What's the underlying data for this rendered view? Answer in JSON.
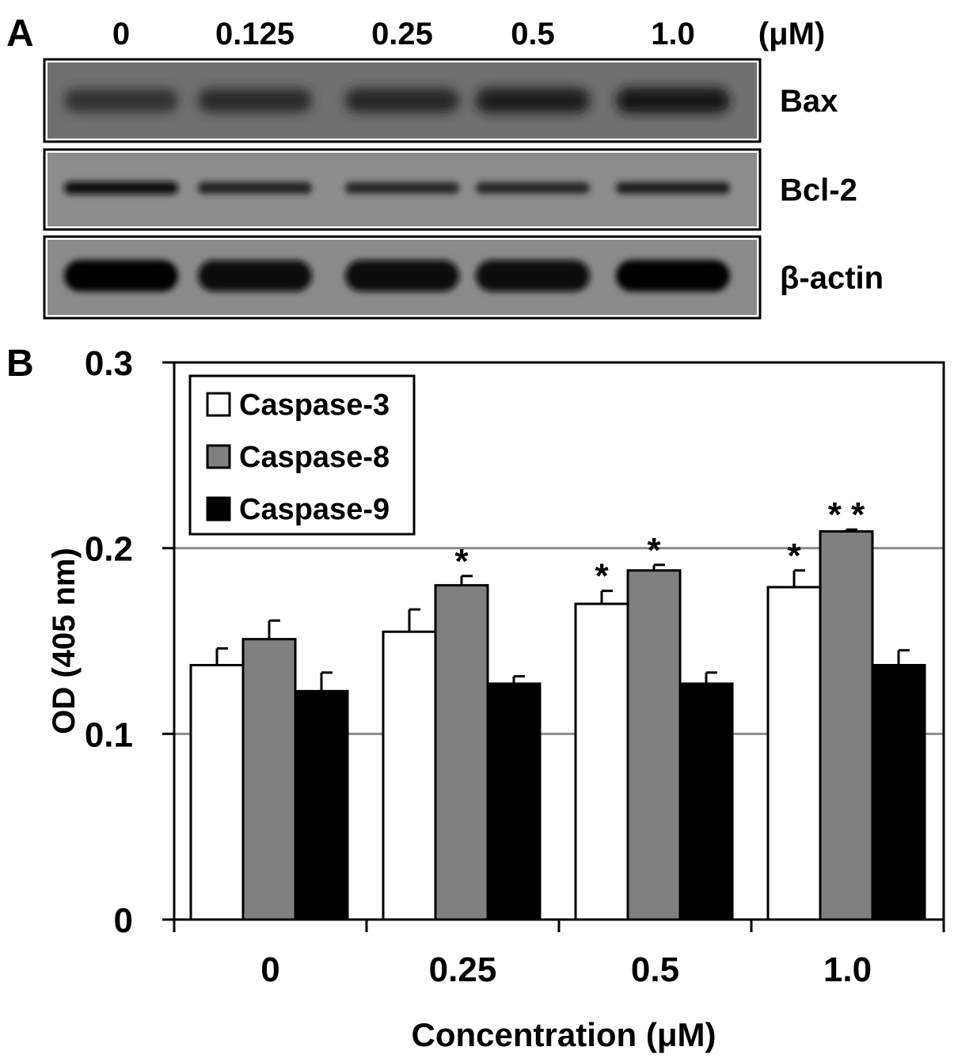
{
  "panel_a": {
    "letter": "A",
    "lane_labels": [
      "0",
      "0.125",
      "0.25",
      "0.5",
      "1.0"
    ],
    "unit": "(μM)",
    "blots": [
      {
        "label": "Bax",
        "band_intensity": [
          0.55,
          0.6,
          0.65,
          0.75,
          0.82
        ],
        "background": "#6f6f6f"
      },
      {
        "label": "Bcl-2",
        "band_intensity": [
          0.95,
          0.7,
          0.65,
          0.65,
          0.75
        ],
        "background": "#8c8c8c"
      },
      {
        "label": "β-actin",
        "band_intensity": [
          1.0,
          0.95,
          0.97,
          0.98,
          1.0
        ],
        "background": "#8a8a8a"
      }
    ]
  },
  "panel_b": {
    "letter": "B"
  },
  "chart_data": {
    "type": "bar",
    "categories": [
      "0",
      "0.25",
      "0.5",
      "1.0"
    ],
    "series": [
      {
        "name": "Caspase-3",
        "color": "#ffffff",
        "values": [
          0.137,
          0.155,
          0.17,
          0.179
        ],
        "errors": [
          0.009,
          0.012,
          0.007,
          0.009
        ],
        "significance": [
          "",
          "",
          "*",
          "*"
        ]
      },
      {
        "name": "Caspase-8",
        "color": "#808080",
        "values": [
          0.151,
          0.18,
          0.188,
          0.209
        ],
        "errors": [
          0.01,
          0.005,
          0.003,
          0.001
        ],
        "significance": [
          "",
          "*",
          "*",
          "* *"
        ]
      },
      {
        "name": "Caspase-9",
        "color": "#000000",
        "values": [
          0.123,
          0.127,
          0.127,
          0.137
        ],
        "errors": [
          0.01,
          0.004,
          0.006,
          0.008
        ],
        "significance": [
          "",
          "",
          "",
          ""
        ]
      }
    ],
    "xlabel": "Concentration (μM)",
    "ylabel": "OD (405 nm)",
    "ylim": [
      0,
      0.3
    ],
    "yticks": [
      "0",
      "0.1",
      "0.2",
      "0.3"
    ],
    "gridlines": [
      0.1,
      0.2
    ],
    "legend_position": "top-left"
  }
}
